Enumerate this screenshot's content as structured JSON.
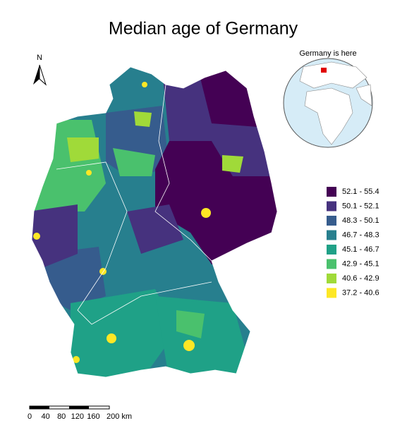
{
  "title": "Median age of Germany",
  "north_label": "N",
  "inset_label": "Germany is here",
  "legend": [
    {
      "label": "52.1 - 55.4",
      "color": "#440154"
    },
    {
      "label": "50.1 - 52.1",
      "color": "#46327e"
    },
    {
      "label": "48.3 - 50.1",
      "color": "#365c8d"
    },
    {
      "label": "46.7 - 48.3",
      "color": "#277f8e"
    },
    {
      "label": "45.1 - 46.7",
      "color": "#1fa187"
    },
    {
      "label": "42.9 - 45.1",
      "color": "#4ac16d"
    },
    {
      "label": "40.6 - 42.9",
      "color": "#a0da39"
    },
    {
      "label": "37.2 - 40.6",
      "color": "#fde725"
    }
  ],
  "scale_bar": [
    "0",
    "40",
    "80",
    "120",
    "160",
    "200 km"
  ]
}
